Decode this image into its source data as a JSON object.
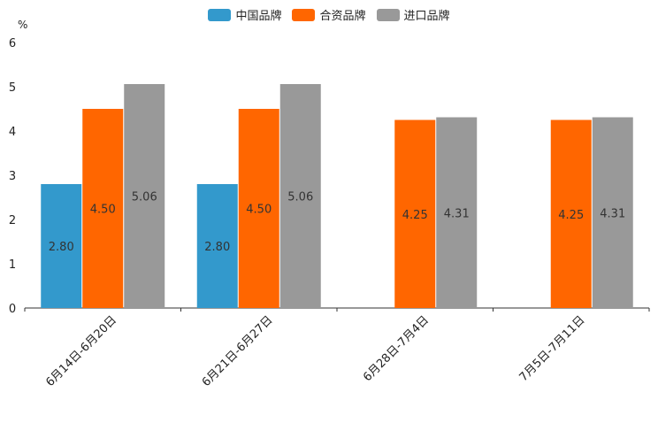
{
  "chart_data": {
    "type": "bar",
    "unit": "%",
    "categories": [
      "6月14日-6月20日",
      "6月21日-6月27日",
      "6月28日-7月4日",
      "7月5日-7月11日"
    ],
    "series": [
      {
        "name": "中国品牌",
        "color": "#3399cc",
        "values": [
          2.8,
          2.8,
          null,
          null
        ],
        "labels": [
          "2.80",
          "2.80",
          "",
          ""
        ]
      },
      {
        "name": "合资品牌",
        "color": "#ff6600",
        "values": [
          4.5,
          4.5,
          4.25,
          4.25
        ],
        "labels": [
          "4.50",
          "4.50",
          "4.25",
          "4.25"
        ]
      },
      {
        "name": "进口品牌",
        "color": "#999999",
        "values": [
          5.06,
          5.06,
          4.31,
          4.31
        ],
        "labels": [
          "5.06",
          "5.06",
          "4.31",
          "4.31"
        ]
      }
    ],
    "ylim": [
      0,
      6
    ],
    "yticks": [
      "0",
      "1",
      "2",
      "3",
      "4",
      "5",
      "6"
    ],
    "legend_position": "top-center"
  }
}
